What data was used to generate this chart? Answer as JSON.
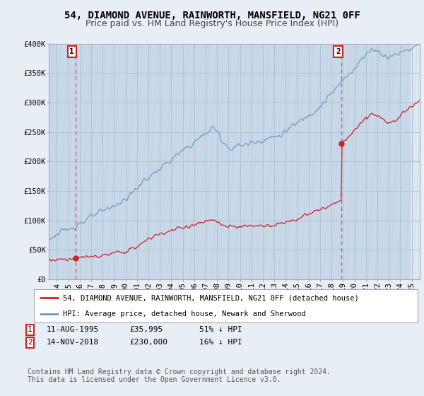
{
  "title": "54, DIAMOND AVENUE, RAINWORTH, MANSFIELD, NG21 0FF",
  "subtitle": "Price paid vs. HM Land Registry's House Price Index (HPI)",
  "ylim": [
    0,
    400000
  ],
  "yticks": [
    0,
    50000,
    100000,
    150000,
    200000,
    250000,
    300000,
    350000,
    400000
  ],
  "ytick_labels": [
    "£0",
    "£50K",
    "£100K",
    "£150K",
    "£200K",
    "£250K",
    "£300K",
    "£350K",
    "£400K"
  ],
  "xlim_start": 1993.3,
  "xlim_end": 2025.7,
  "background_color": "#e8eef5",
  "plot_bg_color": "#dce8f0",
  "hatch_bg_color": "#c8d8e8",
  "grid_color": "#b0c4d8",
  "sale1_date_num": 1995.62,
  "sale1_price": 35995,
  "sale1_label": "1",
  "sale2_date_num": 2018.88,
  "sale2_price": 230000,
  "sale2_label": "2",
  "red_line_color": "#cc2222",
  "blue_line_color": "#6699bb",
  "vline_color": "#dd4444",
  "annotation_box_color": "#cc2222",
  "legend_label_red": "54, DIAMOND AVENUE, RAINWORTH, MANSFIELD, NG21 0FF (detached house)",
  "legend_label_blue": "HPI: Average price, detached house, Newark and Sherwood",
  "table_row1": [
    "1",
    "11-AUG-1995",
    "£35,995",
    "51% ↓ HPI"
  ],
  "table_row2": [
    "2",
    "14-NOV-2018",
    "£230,000",
    "16% ↓ HPI"
  ],
  "footer": "Contains HM Land Registry data © Crown copyright and database right 2024.\nThis data is licensed under the Open Government Licence v3.0.",
  "title_fontsize": 10,
  "subtitle_fontsize": 9,
  "tick_fontsize": 7.5,
  "legend_fontsize": 7.5,
  "footer_fontsize": 7
}
